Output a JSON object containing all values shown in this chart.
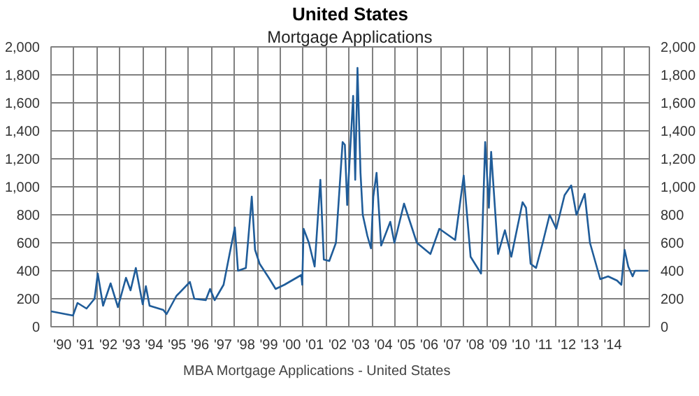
{
  "chart_data": {
    "type": "line",
    "title": "United States",
    "subtitle": "Mortgage Applications",
    "x": [
      "1990-01-01",
      "1990-12-16",
      "1991-02-27",
      "1991-07-20",
      "1991-11-25",
      "1992-01-15",
      "1992-04-09",
      "1992-08-07",
      "1992-12-02",
      "1993-04-09",
      "1993-06-21",
      "1993-09-13",
      "1994-01-01",
      "1994-02-20",
      "1994-04-20",
      "1994-11-25",
      "1995-01-15",
      "1995-06-21",
      "1996-01-22",
      "1996-04-01",
      "1996-10-01",
      "1996-12-09",
      "1997-02-20",
      "1997-07-12",
      "1998-01-07",
      "1998-02-27",
      "1998-07-02",
      "1998-10-04",
      "1998-11-25",
      "1999-02-06",
      "1999-07-02",
      "1999-10-19",
      "2000-03-07",
      "2000-12-02",
      "2000-12-16",
      "2001-01-07",
      "2001-04-01",
      "2001-07-02",
      "2001-10-01",
      "2001-11-25",
      "2002-02-20",
      "2002-06-06",
      "2002-09-20",
      "2002-10-26",
      "2002-12-02",
      "2003-03-07",
      "2003-04-09",
      "2003-05-15",
      "2003-07-02",
      "2003-08-07",
      "2003-10-19",
      "2003-12-16",
      "2004-01-22",
      "2004-03-14",
      "2004-05-26",
      "2004-10-19",
      "2004-12-24",
      "2005-05-26",
      "2005-12-16",
      "2006-07-20",
      "2006-12-09",
      "2007-08-18",
      "2008-01-01",
      "2008-04-20",
      "2008-10-04",
      "2008-12-09",
      "2009-02-06",
      "2009-03-14",
      "2009-07-02",
      "2009-10-19",
      "2010-01-29",
      "2010-07-27",
      "2010-09-20",
      "2010-12-02",
      "2011-02-27",
      "2011-06-13",
      "2011-10-01",
      "2012-01-15",
      "2012-05-26",
      "2012-09-09",
      "2012-12-02",
      "2013-04-12",
      "2013-07-05",
      "2013-10-01",
      "2013-12-16",
      "2014-04-20",
      "2014-09-09",
      "2014-11-17",
      "2015-01-07",
      "2015-03-07",
      "2015-05-15",
      "2015-06-21",
      "2016-01-18"
    ],
    "series": [
      {
        "name": "MBA Mortgage Applications - United States",
        "color": "#1f5c99",
        "values": [
          110,
          80,
          170,
          130,
          200,
          380,
          150,
          310,
          140,
          350,
          260,
          420,
          160,
          290,
          150,
          120,
          90,
          220,
          320,
          200,
          190,
          270,
          190,
          300,
          710,
          400,
          420,
          930,
          550,
          450,
          350,
          270,
          300,
          370,
          300,
          700,
          600,
          430,
          1050,
          480,
          470,
          600,
          1320,
          1300,
          870,
          1650,
          1050,
          1850,
          1100,
          800,
          650,
          560,
          930,
          1100,
          580,
          750,
          600,
          880,
          600,
          520,
          700,
          620,
          1080,
          500,
          380,
          1320,
          850,
          1250,
          520,
          690,
          500,
          890,
          850,
          450,
          420,
          600,
          800,
          700,
          940,
          1010,
          800,
          950,
          600,
          460,
          340,
          360,
          330,
          300,
          550,
          430,
          360,
          400,
          400
        ]
      }
    ],
    "xlim": [
      "1990-01-01",
      "2016-02-06"
    ],
    "xticks": [
      {
        "value": "1990-07-02",
        "label": "'90"
      },
      {
        "value": "1991-07-02",
        "label": "'91"
      },
      {
        "value": "1992-07-02",
        "label": "'92"
      },
      {
        "value": "1993-07-02",
        "label": "'93"
      },
      {
        "value": "1994-07-02",
        "label": "'94"
      },
      {
        "value": "1995-07-02",
        "label": "'95"
      },
      {
        "value": "1996-07-02",
        "label": "'96"
      },
      {
        "value": "1997-07-02",
        "label": "'97"
      },
      {
        "value": "1998-07-02",
        "label": "'98"
      },
      {
        "value": "1999-07-02",
        "label": "'99"
      },
      {
        "value": "2000-07-02",
        "label": "'00"
      },
      {
        "value": "2001-07-02",
        "label": "'01"
      },
      {
        "value": "2002-07-02",
        "label": "'02"
      },
      {
        "value": "2003-07-02",
        "label": "'03"
      },
      {
        "value": "2004-07-02",
        "label": "'04"
      },
      {
        "value": "2005-07-02",
        "label": "'05"
      },
      {
        "value": "2006-07-02",
        "label": "'06"
      },
      {
        "value": "2007-07-02",
        "label": "'07"
      },
      {
        "value": "2008-07-02",
        "label": "'08"
      },
      {
        "value": "2009-07-02",
        "label": "'09"
      },
      {
        "value": "2010-07-02",
        "label": "'10"
      },
      {
        "value": "2011-07-02",
        "label": "'11"
      },
      {
        "value": "2012-07-02",
        "label": "'12"
      },
      {
        "value": "2013-07-02",
        "label": "'13"
      },
      {
        "value": "2014-07-02",
        "label": "'14"
      },
      {
        "value": "1991-01-01",
        "label": null
      },
      {
        "value": "1992-01-01",
        "label": null
      },
      {
        "value": "1993-01-01",
        "label": null
      },
      {
        "value": "1994-01-01",
        "label": null
      },
      {
        "value": "1995-01-01",
        "label": null
      },
      {
        "value": "1996-01-01",
        "label": null
      },
      {
        "value": "1997-01-01",
        "label": null
      },
      {
        "value": "1998-01-01",
        "label": null
      },
      {
        "value": "1999-01-01",
        "label": null
      },
      {
        "value": "2000-01-01",
        "label": null
      },
      {
        "value": "2001-01-01",
        "label": null
      },
      {
        "value": "2002-01-01",
        "label": null
      },
      {
        "value": "2003-01-01",
        "label": null
      },
      {
        "value": "2004-01-01",
        "label": null
      },
      {
        "value": "2005-01-01",
        "label": null
      },
      {
        "value": "2006-01-01",
        "label": null
      },
      {
        "value": "2007-01-01",
        "label": null
      },
      {
        "value": "2008-01-01",
        "label": null
      },
      {
        "value": "2009-01-01",
        "label": null
      },
      {
        "value": "2010-01-01",
        "label": null
      },
      {
        "value": "2011-01-01",
        "label": null
      },
      {
        "value": "2012-01-01",
        "label": null
      },
      {
        "value": "2013-01-01",
        "label": null
      },
      {
        "value": "2014-01-01",
        "label": null
      },
      {
        "value": "2015-01-01",
        "label": null
      }
    ],
    "ylim": [
      0,
      2000
    ],
    "yticks": [
      0,
      200,
      400,
      600,
      800,
      {
        "value": 1000,
        "label": "1,000"
      },
      {
        "value": 1200,
        "label": "1,200"
      },
      {
        "value": 1400,
        "label": "1,400"
      },
      {
        "value": 1600,
        "label": "1,600"
      },
      {
        "value": 1800,
        "label": "1,800"
      },
      {
        "value": 2000,
        "label": "2,000"
      }
    ],
    "y2lim": [
      0,
      2000
    ],
    "y2ticks": [
      0,
      200,
      400,
      600,
      800,
      {
        "value": 1000,
        "label": "1,000"
      },
      {
        "value": 1200,
        "label": "1,200"
      },
      {
        "value": 1400,
        "label": "1,400"
      },
      {
        "value": 1600,
        "label": "1,600"
      },
      {
        "value": 1800,
        "label": "1,800"
      },
      {
        "value": 2000,
        "label": "2,000"
      }
    ],
    "grid": true,
    "legend": "bottom",
    "line_style": "solid"
  }
}
